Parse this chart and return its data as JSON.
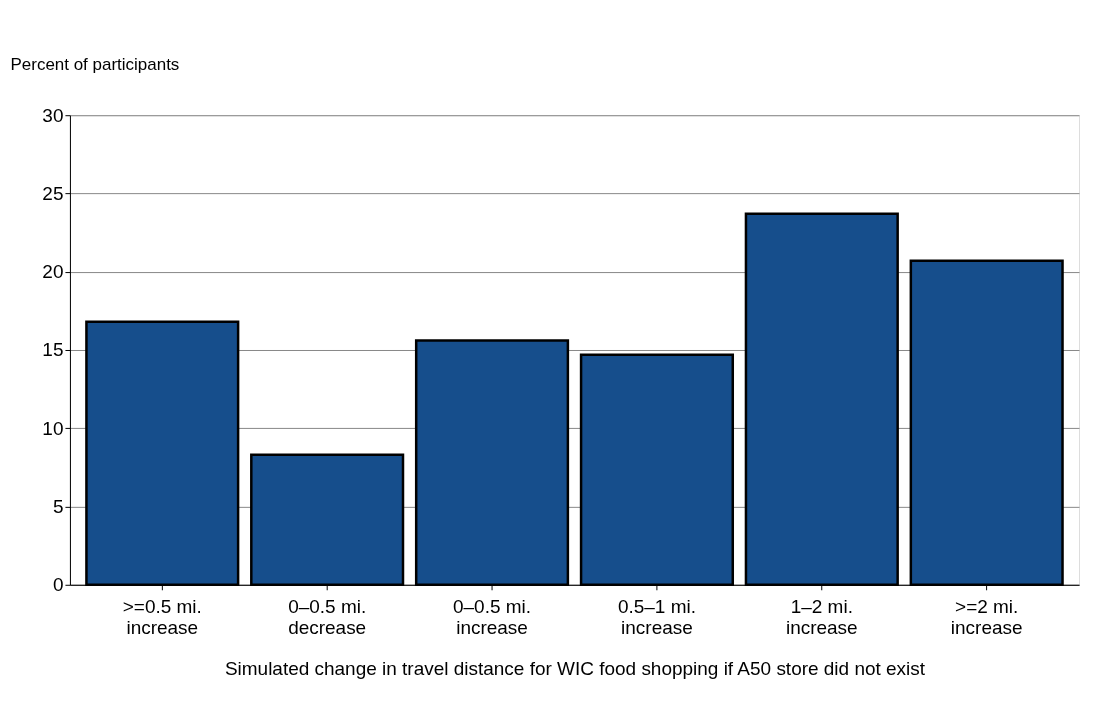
{
  "chart_data": {
    "type": "bar",
    "ylabel": "Percent of participants",
    "xlabel": "Simulated change in travel distance for WIC food shopping if A50 store did not exist",
    "categories": [
      ">=0.5 mi.\nincrease",
      "0–0.5 mi.\ndecrease",
      "0–0.5 mi.\nincrease",
      "0.5–1 mi.\nincrease",
      "1–2 mi.\nincrease",
      ">=2 mi.\nincrease"
    ],
    "values": [
      16.8,
      8.3,
      15.6,
      14.7,
      23.7,
      20.7
    ],
    "color": "#164e8c",
    "ylim": [
      0,
      30
    ],
    "yticks": [
      0,
      5,
      10,
      15,
      20,
      25,
      30
    ],
    "grid": "y"
  }
}
